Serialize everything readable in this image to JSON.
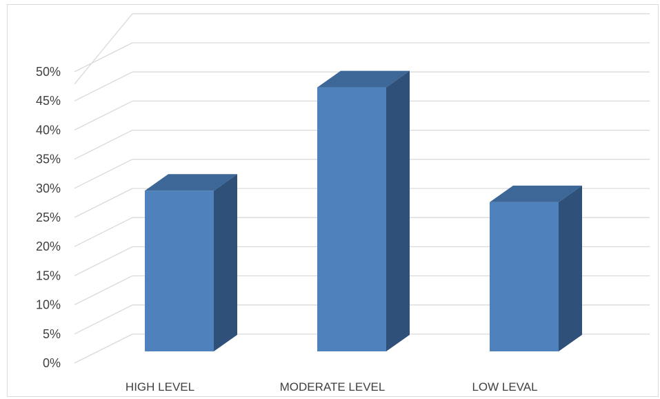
{
  "chart_data": {
    "type": "bar",
    "style": "3d-column",
    "categories": [
      "HIGH LEVEL",
      "MODERATE LEVEL",
      "LOW LEVAL"
    ],
    "series": [
      {
        "values": [
          0.28,
          0.46,
          0.26
        ]
      }
    ],
    "y_ticks": [
      "0%",
      "5%",
      "10%",
      "15%",
      "20%",
      "25%",
      "30%",
      "35%",
      "40%",
      "45%",
      "50%"
    ],
    "ylim": [
      0,
      0.5
    ],
    "grid": true,
    "legend": "none",
    "colors": {
      "bar_front": "#4f81bd",
      "bar_top": "#3c6796",
      "bar_side": "#2f5079",
      "grid": "#d9d9d9",
      "text": "#404040"
    }
  }
}
